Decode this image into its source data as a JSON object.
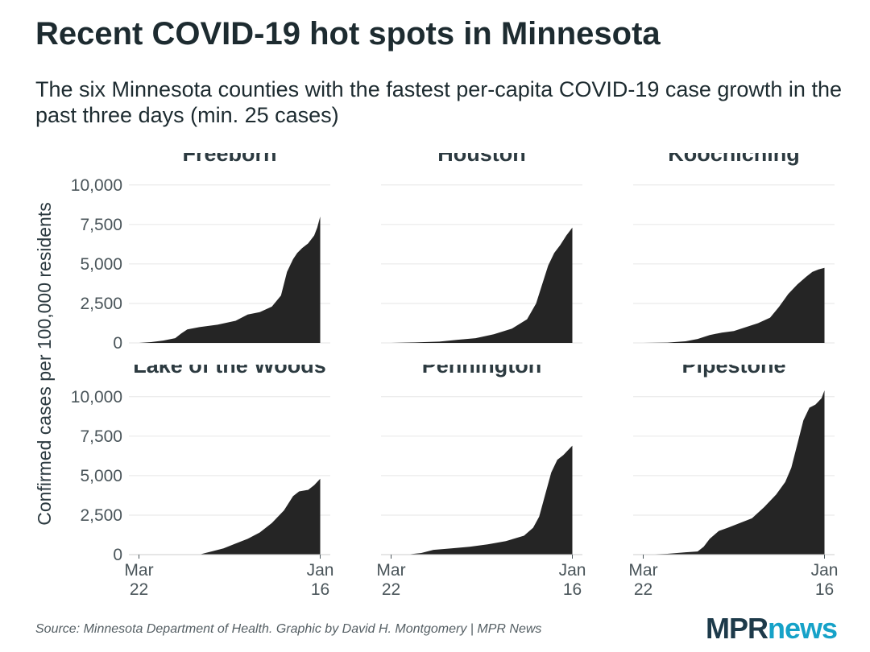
{
  "title": "Recent COVID-19 hot spots in Minnesota",
  "subtitle": "The six Minnesota counties with the fastest per-capita COVID-19 case growth in the past three days (min. 25 cases)",
  "source": "Source: Minnesota Department of Health. Graphic by David H. Montgomery | MPR News",
  "logo": {
    "part1": "MPR",
    "part2": "news",
    "color1": "#1d3a4a",
    "color2": "#16a2c8"
  },
  "chart_data": {
    "type": "area",
    "title": "Recent COVID-19 hot spots in Minnesota",
    "ylabel": "Confirmed cases per 100,000 residents",
    "xlabel": "",
    "ylim": [
      0,
      10500
    ],
    "yticks": [
      0,
      2500,
      5000,
      7500,
      10000
    ],
    "ytick_labels": [
      "0",
      "2,500",
      "5,000",
      "7,500",
      "10,000"
    ],
    "xtick_labels": [
      [
        "Mar",
        "22"
      ],
      [
        "Jan",
        "16"
      ]
    ],
    "x_range": [
      "2020-03-22",
      "2021-01-16"
    ],
    "x_days": 300,
    "fill_color": "#252525",
    "grid": true,
    "series": [
      {
        "name": "Freeborn",
        "x": [
          0,
          20,
          40,
          60,
          70,
          80,
          100,
          130,
          160,
          180,
          200,
          220,
          235,
          245,
          255,
          262,
          270,
          280,
          290,
          295,
          300
        ],
        "values": [
          0,
          50,
          150,
          300,
          600,
          850,
          1000,
          1150,
          1400,
          1800,
          1950,
          2300,
          3000,
          4500,
          5300,
          5700,
          6000,
          6300,
          6800,
          7300,
          8000
        ]
      },
      {
        "name": "Houston",
        "x": [
          0,
          40,
          80,
          110,
          140,
          170,
          200,
          225,
          240,
          250,
          260,
          270,
          280,
          290,
          300
        ],
        "values": [
          0,
          30,
          80,
          200,
          300,
          550,
          900,
          1500,
          2500,
          3700,
          4900,
          5700,
          6200,
          6800,
          7300
        ]
      },
      {
        "name": "Koochiching",
        "x": [
          0,
          40,
          70,
          90,
          110,
          130,
          150,
          170,
          190,
          210,
          225,
          240,
          255,
          270,
          280,
          290,
          300
        ],
        "values": [
          0,
          20,
          100,
          250,
          500,
          650,
          750,
          1000,
          1250,
          1600,
          2300,
          3100,
          3700,
          4200,
          4500,
          4650,
          4750
        ]
      },
      {
        "name": "Lake of the Woods",
        "x": [
          0,
          70,
          100,
          120,
          140,
          160,
          180,
          200,
          220,
          240,
          255,
          265,
          280,
          290,
          300
        ],
        "values": [
          0,
          0,
          0,
          200,
          400,
          700,
          1000,
          1400,
          2000,
          2800,
          3700,
          4000,
          4100,
          4400,
          4800
        ]
      },
      {
        "name": "Pennington",
        "x": [
          0,
          30,
          50,
          70,
          100,
          130,
          160,
          190,
          220,
          235,
          245,
          255,
          265,
          275,
          285,
          300
        ],
        "values": [
          0,
          20,
          100,
          300,
          400,
          500,
          650,
          850,
          1200,
          1700,
          2400,
          3800,
          5200,
          6000,
          6300,
          6900
        ]
      },
      {
        "name": "Pipestone",
        "x": [
          0,
          40,
          70,
          90,
          100,
          110,
          125,
          140,
          160,
          180,
          200,
          220,
          235,
          245,
          255,
          265,
          275,
          285,
          295,
          300
        ],
        "values": [
          0,
          50,
          150,
          200,
          500,
          1000,
          1500,
          1700,
          2000,
          2300,
          3000,
          3800,
          4600,
          5500,
          7000,
          8500,
          9300,
          9500,
          9900,
          10400
        ]
      }
    ]
  }
}
